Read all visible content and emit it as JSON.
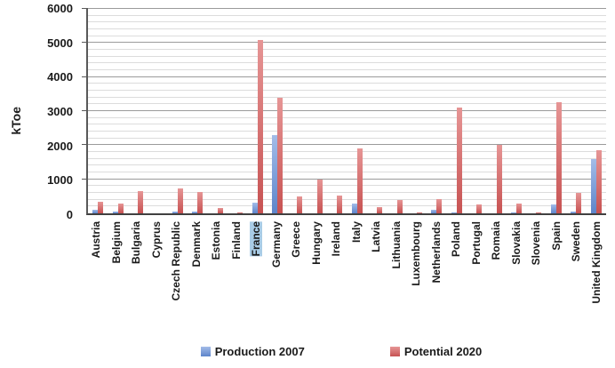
{
  "y_axis": {
    "title": "kToe",
    "tick_labels": [
      "0",
      "1000",
      "2000",
      "3000",
      "4000",
      "5000",
      "6000"
    ]
  },
  "legend": [
    {
      "label": "Production 2007",
      "color": "#6b90d6",
      "color_light": "#a3bce8",
      "color_dark": "#5d85ca"
    },
    {
      "label": "Potential 2020",
      "color": "#c75252",
      "color_light": "#e69595",
      "color_dark": "#c75252"
    }
  ],
  "chart_data": {
    "type": "bar",
    "title": "",
    "xlabel": "",
    "ylabel": "kToe",
    "ylim": [
      0,
      6000
    ],
    "y_major_step": 1000,
    "y_minor_step": 200,
    "grid": true,
    "legend_position": "bottom",
    "highlighted_category": "France",
    "categories": [
      "Austria",
      "Belgium",
      "Bulgaria",
      "Cyprus",
      "Czech Republic",
      "Denmark",
      "Estonia",
      "Finland",
      "France",
      "Germany",
      "Greece",
      "Hungary",
      "Ireland",
      "Italy",
      "Latvia",
      "Lithuania",
      "Luxembourg",
      "Netherlands",
      "Poland",
      "Portugal",
      "Romaia",
      "Slovakia",
      "Slovenia",
      "Spain",
      "Sweden",
      "United Kingdom"
    ],
    "series": [
      {
        "name": "Production 2007",
        "values": [
          100,
          50,
          10,
          0,
          50,
          60,
          0,
          0,
          320,
          2300,
          0,
          10,
          0,
          300,
          0,
          0,
          0,
          100,
          30,
          0,
          10,
          20,
          10,
          250,
          40,
          1600
        ]
      },
      {
        "name": "Potential 2020",
        "values": [
          350,
          300,
          650,
          0,
          720,
          620,
          150,
          30,
          5100,
          3400,
          500,
          1000,
          520,
          1900,
          180,
          380,
          20,
          420,
          3100,
          250,
          2000,
          280,
          30,
          3260,
          600,
          1850
        ]
      }
    ]
  },
  "colors": {
    "grid_minor": "#dcdcdc",
    "grid_major": "#9b9b9b",
    "axis": "#595959",
    "highlight_bg": "#a9cce6"
  }
}
